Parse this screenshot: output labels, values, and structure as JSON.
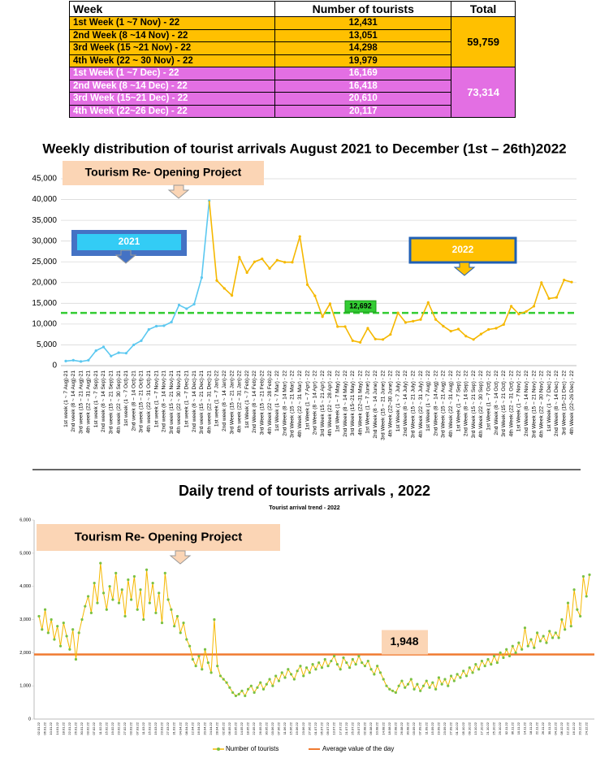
{
  "table": {
    "header": [
      "Week",
      "Number of tourists",
      "Total"
    ],
    "rows": [
      [
        "1st Week (1 ~7 Nov) - 22",
        "12,431"
      ],
      [
        "2nd Week (8 ~14 Nov) - 22",
        "13,051"
      ],
      [
        "3rd   Week (15 ~21 Nov) - 22",
        "14,298"
      ],
      [
        "4th Week (22 ~ 30 Nov) - 22",
        "19,979"
      ],
      [
        "1st Week (1 ~7 Dec) - 22",
        "16,169"
      ],
      [
        "2nd Week (8 ~14 Dec) - 22",
        "16,418"
      ],
      [
        "3rd Week (15~21 Dec) - 22",
        "20,610"
      ],
      [
        "4th Week (22~26 Dec) - 22",
        "20,117"
      ]
    ],
    "totals": [
      "59,759",
      "73,314"
    ]
  },
  "chart_data": [
    {
      "type": "line",
      "title": "Weekly distribution of tourist arrivals August 2021 to December (1st – 26th)2022",
      "annotations": [
        "Tourism Re- Opening Project"
      ],
      "categories": [
        "1st week (1 ~ 7 Aug)-21",
        "2nd week (8 ~ 14 Aug)-21",
        "3rd week (15 ~ 21 Aug)-21",
        "4th week (22 ~ 31 Aug)-21",
        "1st week (1 ~ 7 Sep)-21",
        "2nd week (8 ~ 14 Sep)-21",
        "3rd week (15 ~ 21 Sep)-21",
        "4th week (22 ~ 30 Sep)-21",
        "1st week (1 ~ 7 Oct)-21",
        "2nd week (8 ~ 14 Oct)-21",
        "3rd week (15 ~ 21 Oct)-21",
        "4th week (22 ~ 31 Oct)-21",
        "1st week (1 ~ 7 Nov)-21",
        "2nd week (8 ~ 14 Nov)-21",
        "3rd week (15 ~ 21 Nov)-21",
        "4th week (22 ~ 30 Nov)-21",
        "1st week (1 ~ 7 Dec)-21",
        "2nd week (8 ~ 14 Dec)-21",
        "3rd week (15 ~ 21 Dec)-21",
        "4th week (22 ~ 31 Dec)-21",
        "1st week (1 ~ 7 Jan)-22",
        "2nd week (8 ~ 14 Jan)-22",
        "3rd Week (15 ~ 21 Jan)-22",
        "4th week (22 ~ 31 Jan)-22",
        "1st Week (1 ~ 7 Feb)-22",
        "2nd Week (8 ~ 14 Feb)-22",
        "3rd Week (15 ~ 21 Feb)-22",
        "4th Week (22 ~ 28 Feb)-22",
        "1st Week (1 ~ 7 Mar) - 22",
        "2nd Week (8 ~ 14 Mar) - 22",
        "3rd Week (15 ~ 21 Mar) - 22",
        "4th Week (22 ~ 31 Mar) - 22",
        "1st Week (1 ~ 7 Apr) - 22",
        "2nd Week (8 ~ 14 Apr) - 22",
        "3rd Week (15 ~ 21 Apr) - 22",
        "4th Week (22 ~ 28 Apr) - 22",
        "1st Week (1 ~ 7 May) - 22",
        "2nd Week (8 ~ 14 May) - 22",
        "3rd Week (15~21 May) - 22",
        "4th Week (22~31 May) - 22",
        "1st Week (1 ~ 7 June) - 22",
        "2nd Week (8 ~ 14 June) - 22",
        "3rd Week (15 ~ 21 June) - 22",
        "4th Week (22~30 June) - 22",
        "1st Week (1 ~ 7 July) - 22",
        "2nd Week (8 ~ 14 July) - 22",
        "3rd Week (15 ~ 21 July) - 22",
        "4th Week (22 ~ 31 July) - 22",
        "1st Week (1 ~ 7 Aug) - 22",
        "2nd Week (8 ~ 14 Aug) - 22",
        "3rd Week (15 ~ 21 Aug) - 22",
        "4th Week (22 ~ 31 Aug) - 22",
        "1st Week (1 ~ 7 Sep) - 22",
        "2nd Week (8 ~ 14 Sep) - 22",
        "3rd Week (15 ~ 21 Sep) - 22",
        "4th Week (22 ~ 30 Sep) - 22",
        "1st Week (1 ~ 7 Oct) - 22",
        "2nd Week (8 ~ 14 Oct) - 22",
        "3rd Week (15 ~ 21 Oct) - 22",
        "4th Week (22 ~ 31 Oct) - 22",
        "1st Week (1 ~ 7 Nov) - 22",
        "2nd Week (8 ~ 14 Nov) - 22",
        "3rd Week (15 ~ 21 Nov) - 22",
        "4th Week (22 ~ 30 Nov) - 22",
        "1st Week (1 ~ 7 Dec) - 22",
        "2nd Week (8 ~ 14 Dec) - 22",
        "3rd Week (15~21 Dec) - 22",
        "4th Week (22~26 Dec) - 22"
      ],
      "series": [
        {
          "name": "2021",
          "color": "#5bc8f0",
          "values": [
            1100,
            1300,
            1000,
            1300,
            3600,
            4500,
            2300,
            3100,
            3000,
            5000,
            6000,
            8700,
            9500,
            9600,
            10500,
            14600,
            13700,
            14800,
            21200,
            39700,
            null,
            null,
            null,
            null,
            null,
            null,
            null,
            null,
            null,
            null,
            null,
            null,
            null,
            null,
            null,
            null,
            null,
            null,
            null,
            null,
            null,
            null,
            null,
            null,
            null,
            null,
            null,
            null,
            null,
            null,
            null,
            null,
            null,
            null,
            null,
            null,
            null,
            null,
            null,
            null,
            null,
            null,
            null,
            null,
            null,
            null,
            null,
            null
          ]
        },
        {
          "name": "2022",
          "color": "#f5b800",
          "values": [
            null,
            null,
            null,
            null,
            null,
            null,
            null,
            null,
            null,
            null,
            null,
            null,
            null,
            null,
            null,
            null,
            null,
            null,
            null,
            null,
            20500,
            18600,
            16900,
            26100,
            22400,
            25000,
            25700,
            23400,
            25400,
            24900,
            24900,
            31100,
            19500,
            16800,
            11800,
            14900,
            9400,
            9400,
            6000,
            5600,
            9000,
            6400,
            6300,
            7500,
            12700,
            10400,
            10700,
            11100,
            15200,
            11100,
            9500,
            8300,
            8800,
            7100,
            6300,
            7600,
            8700,
            9000,
            9900,
            14300,
            12431,
            13051,
            14298,
            19979,
            16169,
            16418,
            20610,
            20117
          ]
        }
      ],
      "reference_line": {
        "value": 12692,
        "label": "12,692",
        "color": "#33cc33"
      },
      "ylim": [
        0,
        45000
      ],
      "yticks": [
        0,
        {
          "value": 5000,
          "label": "5,000"
        },
        {
          "value": 10000,
          "label": "10,000"
        },
        {
          "value": 15000,
          "label": "15,000"
        },
        {
          "value": 20000,
          "label": "20,000"
        },
        {
          "value": 25000,
          "label": "25,000"
        },
        {
          "value": 30000,
          "label": "30,000"
        },
        {
          "value": 35000,
          "label": "35,000"
        },
        {
          "value": 40000,
          "label": "40,000"
        },
        {
          "value": 45000,
          "label": "45,000"
        }
      ],
      "grid": true
    },
    {
      "type": "line",
      "title": "Daily trend  of tourists arrivals , 2022",
      "subtitle": "Tourist arrival trend - 2022",
      "annotations": [
        "Tourism Re- Opening Project"
      ],
      "categories": [
        "02.01.22",
        null,
        "06.01.22",
        null,
        "10.01.22",
        null,
        "14.01.22",
        null,
        "18.01.22",
        null,
        "22.01.22",
        null,
        "26.01.22",
        null,
        "30.01.22",
        null,
        "03.02.22",
        null,
        "07.02.22",
        null,
        "11.02.22",
        null,
        "15.02.22",
        null,
        "19.02.22",
        null,
        "23.02.22",
        null,
        "27.02.22",
        null,
        "03.03.22",
        null,
        "07.03.22",
        null,
        "11.03.22",
        null,
        "15.03.22",
        null,
        "19.03.22",
        null,
        "23.03.22",
        null,
        "27.03.22",
        null,
        "31.03.22",
        null,
        "04.04.22",
        null,
        "08.04.22",
        null,
        "12.04.22",
        null,
        "16.04.22",
        null,
        "20.04.22",
        null,
        "24.04.22",
        null,
        "28.04.22",
        null,
        "02.05.22",
        null,
        "06.05.22",
        null,
        "10.05.22",
        null,
        "14.05.22",
        null,
        "18.05.22",
        null,
        "22.05.22",
        null,
        "26.05.22",
        null,
        "30.05.22",
        null,
        "03.06.22",
        null,
        "07.06.22",
        null,
        "11.06.22",
        null,
        "15.06.22",
        null,
        "19.06.22",
        null,
        "23.06.22",
        null,
        "27.06.22",
        null,
        "01.07.22",
        null,
        "05.07.22",
        null,
        "09.07.22",
        null,
        "13.07.22",
        null,
        "17.07.22",
        null,
        "21.07.22",
        null,
        "25.07.22",
        null,
        "29.07.22",
        null,
        "02.08.22",
        null,
        "06.08.22",
        null,
        "10.08.22",
        null,
        "14.08.22",
        null,
        "18.08.22",
        null,
        "22.08.22",
        null,
        "26.08.22",
        null,
        "30.08.22",
        null,
        "03.09.22",
        null,
        "07.09.22",
        null,
        "11.09.22",
        null,
        "15.09.22",
        null,
        "19.09.22",
        null,
        "23.09.22",
        null,
        "27.09.22",
        null,
        "01.10.22",
        null,
        "05.10.22",
        null,
        "09.10.22",
        null,
        "13.10.22",
        null,
        "17.10.22",
        null,
        "21.10.22",
        null,
        "25.10.22",
        null,
        "29.10.22",
        null,
        "02.11.22",
        null,
        "06.11.22",
        null,
        "10.11.22",
        null,
        "14.11.22",
        null,
        "18.11.22",
        null,
        "22.11.22",
        null,
        "26.11.22",
        null,
        "30.11.22",
        null,
        "04.12.22",
        null,
        "08.12.22",
        null,
        "12.12.22",
        null,
        "16.12.22",
        null,
        "20.12.22",
        null,
        "24.12.22",
        null
      ],
      "series": [
        {
          "name": "Number of tourists",
          "color": "#f5b800",
          "marker_color": "#7ac143",
          "values": [
            3100,
            2700,
            3300,
            2600,
            3000,
            2400,
            2800,
            2200,
            2900,
            2500,
            2100,
            2700,
            1800,
            2600,
            3000,
            3400,
            3700,
            3200,
            4100,
            3500,
            4700,
            3800,
            3300,
            4000,
            3600,
            4400,
            3500,
            3900,
            3100,
            4200,
            3600,
            4300,
            3300,
            3900,
            3000,
            4500,
            3500,
            4100,
            3200,
            3800,
            2900,
            4400,
            3600,
            3300,
            2800,
            3100,
            2600,
            2900,
            2400,
            2200,
            1800,
            1600,
            1900,
            1500,
            2100,
            1700,
            1400,
            3000,
            1600,
            1300,
            1200,
            1100,
            950,
            800,
            700,
            750,
            850,
            700,
            900,
            1000,
            800,
            950,
            1100,
            900,
            1050,
            1200,
            1000,
            1300,
            1150,
            1400,
            1250,
            1500,
            1350,
            1200,
            1450,
            1600,
            1300,
            1550,
            1400,
            1650,
            1500,
            1700,
            1550,
            1800,
            1600,
            1750,
            1900,
            1650,
            1500,
            1850,
            1700,
            1550,
            1800,
            1650,
            1900,
            1700,
            1600,
            1750,
            1500,
            1350,
            1600,
            1400,
            1200,
            1000,
            900,
            850,
            800,
            1000,
            1150,
            950,
            1050,
            1200,
            900,
            1050,
            850,
            1000,
            1150,
            950,
            1100,
            900,
            1250,
            1050,
            1200,
            1000,
            1300,
            1150,
            1350,
            1250,
            1450,
            1300,
            1550,
            1400,
            1650,
            1500,
            1750,
            1600,
            1800,
            1650,
            1900,
            1700,
            2000,
            1850,
            2100,
            1900,
            2200,
            2000,
            2300,
            2100,
            2750,
            2200,
            2400,
            2150,
            2600,
            2350,
            2500,
            2300,
            2650,
            2450,
            2600,
            2450,
            3000,
            2700,
            3500,
            2800,
            3900,
            3300,
            3100,
            4300,
            3700,
            4350
          ]
        }
      ],
      "reference_line": {
        "name": "Average value of the day",
        "value": 1948,
        "label": "1,948",
        "color": "#f07a30"
      },
      "ylim": [
        0,
        6000
      ],
      "yticks": [
        0,
        {
          "value": 1000,
          "label": "1,000"
        },
        {
          "value": 2000,
          "label": "2,000"
        },
        {
          "value": 3000,
          "label": "3,000"
        },
        {
          "value": 4000,
          "label": "4,000"
        },
        {
          "value": 5000,
          "label": "5,000"
        },
        {
          "value": 6000,
          "label": "6,000"
        }
      ],
      "grid": false
    }
  ]
}
